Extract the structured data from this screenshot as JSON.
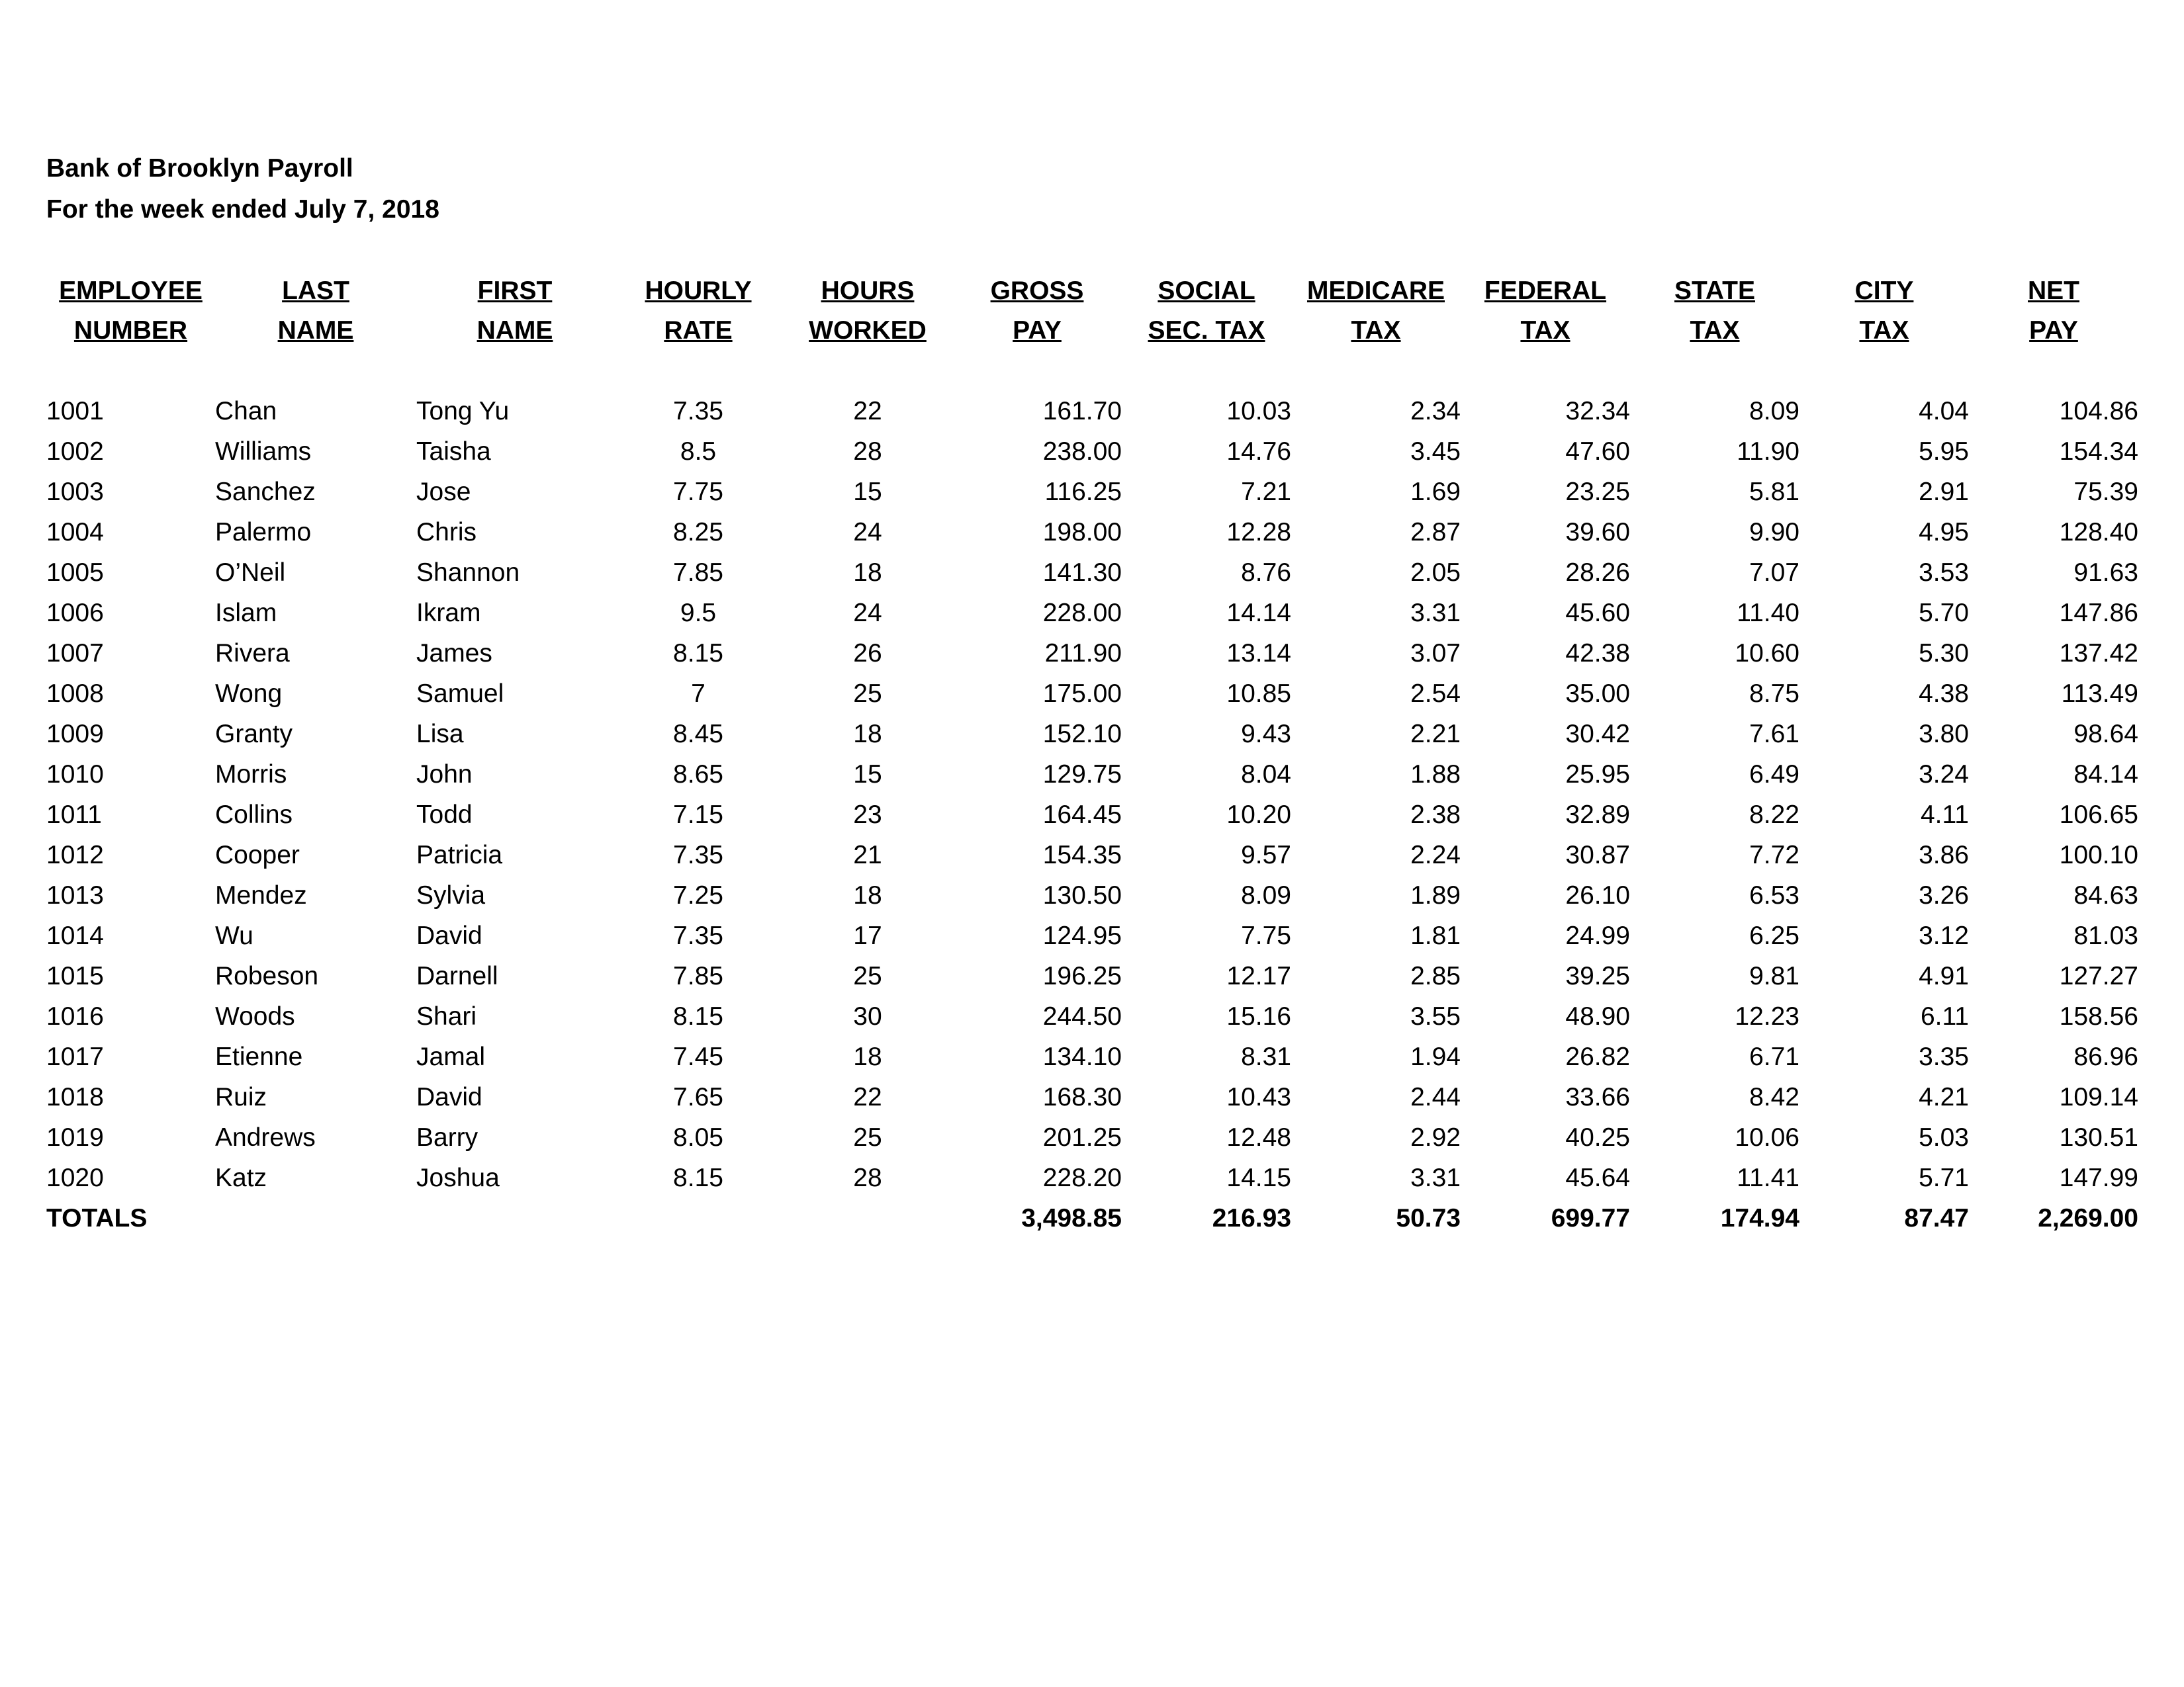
{
  "title": "Bank of Brooklyn Payroll",
  "subtitle": "For the week  ended July  7, 2018",
  "headers": [
    [
      "EMPLOYEE",
      "NUMBER"
    ],
    [
      "LAST",
      "NAME"
    ],
    [
      "FIRST",
      "NAME"
    ],
    [
      "HOURLY",
      "RATE"
    ],
    [
      "HOURS",
      "WORKED"
    ],
    [
      "GROSS",
      "PAY"
    ],
    [
      "SOCIAL",
      "SEC. TAX"
    ],
    [
      "MEDICARE",
      "TAX"
    ],
    [
      "FEDERAL",
      "TAX"
    ],
    [
      "STATE",
      "TAX"
    ],
    [
      "CITY",
      "TAX"
    ],
    [
      "NET",
      "PAY"
    ]
  ],
  "rows": [
    [
      "1001",
      "Chan",
      "Tong Yu",
      "7.35",
      "22",
      "161.70",
      "10.03",
      "2.34",
      "32.34",
      "8.09",
      "4.04",
      "104.86"
    ],
    [
      "1002",
      "Williams",
      "Taisha",
      "8.5",
      "28",
      "238.00",
      "14.76",
      "3.45",
      "47.60",
      "11.90",
      "5.95",
      "154.34"
    ],
    [
      "1003",
      "Sanchez",
      "Jose",
      "7.75",
      "15",
      "116.25",
      "7.21",
      "1.69",
      "23.25",
      "5.81",
      "2.91",
      "75.39"
    ],
    [
      "1004",
      "Palermo",
      "Chris",
      "8.25",
      "24",
      "198.00",
      "12.28",
      "2.87",
      "39.60",
      "9.90",
      "4.95",
      "128.40"
    ],
    [
      "1005",
      "O’Neil",
      "Shannon",
      "7.85",
      "18",
      "141.30",
      "8.76",
      "2.05",
      "28.26",
      "7.07",
      "3.53",
      "91.63"
    ],
    [
      "1006",
      "Islam",
      "Ikram",
      "9.5",
      "24",
      "228.00",
      "14.14",
      "3.31",
      "45.60",
      "11.40",
      "5.70",
      "147.86"
    ],
    [
      "1007",
      "Rivera",
      "James",
      "8.15",
      "26",
      "211.90",
      "13.14",
      "3.07",
      "42.38",
      "10.60",
      "5.30",
      "137.42"
    ],
    [
      "1008",
      "Wong",
      "Samuel",
      "7",
      "25",
      "175.00",
      "10.85",
      "2.54",
      "35.00",
      "8.75",
      "4.38",
      "113.49"
    ],
    [
      "1009",
      "Granty",
      "Lisa",
      "8.45",
      "18",
      "152.10",
      "9.43",
      "2.21",
      "30.42",
      "7.61",
      "3.80",
      "98.64"
    ],
    [
      "1010",
      "Morris",
      "John",
      "8.65",
      "15",
      "129.75",
      "8.04",
      "1.88",
      "25.95",
      "6.49",
      "3.24",
      "84.14"
    ],
    [
      "1011",
      "Collins",
      "Todd",
      "7.15",
      "23",
      "164.45",
      "10.20",
      "2.38",
      "32.89",
      "8.22",
      "4.11",
      "106.65"
    ],
    [
      "1012",
      "Cooper",
      "Patricia",
      "7.35",
      "21",
      "154.35",
      "9.57",
      "2.24",
      "30.87",
      "7.72",
      "3.86",
      "100.10"
    ],
    [
      "1013",
      "Mendez",
      "Sylvia",
      "7.25",
      "18",
      "130.50",
      "8.09",
      "1.89",
      "26.10",
      "6.53",
      "3.26",
      "84.63"
    ],
    [
      "1014",
      "Wu",
      "David",
      "7.35",
      "17",
      "124.95",
      "7.75",
      "1.81",
      "24.99",
      "6.25",
      "3.12",
      "81.03"
    ],
    [
      "1015",
      "Robeson",
      "Darnell",
      "7.85",
      "25",
      "196.25",
      "12.17",
      "2.85",
      "39.25",
      "9.81",
      "4.91",
      "127.27"
    ],
    [
      "1016",
      "Woods",
      "Shari",
      "8.15",
      "30",
      "244.50",
      "15.16",
      "3.55",
      "48.90",
      "12.23",
      "6.11",
      "158.56"
    ],
    [
      "1017",
      "Etienne",
      "Jamal",
      "7.45",
      "18",
      "134.10",
      "8.31",
      "1.94",
      "26.82",
      "6.71",
      "3.35",
      "86.96"
    ],
    [
      "1018",
      "Ruiz",
      "David",
      "7.65",
      "22",
      "168.30",
      "10.43",
      "2.44",
      "33.66",
      "8.42",
      "4.21",
      "109.14"
    ],
    [
      "1019",
      "Andrews",
      "Barry",
      "8.05",
      "25",
      "201.25",
      "12.48",
      "2.92",
      "40.25",
      "10.06",
      "5.03",
      "130.51"
    ],
    [
      "1020",
      "Katz",
      "Joshua",
      "8.15",
      "28",
      "228.20",
      "14.15",
      "3.31",
      "45.64",
      "11.41",
      "5.71",
      "147.99"
    ]
  ],
  "totals": [
    "TOTALS",
    "",
    "",
    "",
    "",
    "3,498.85",
    "216.93",
    "50.73",
    "699.77",
    "174.94",
    "87.47",
    "2,269.00"
  ]
}
